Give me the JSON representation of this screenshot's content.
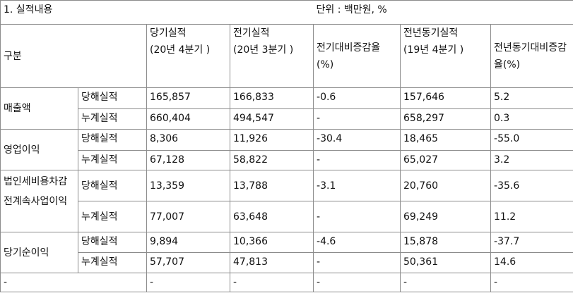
{
  "title": "1. 실적내용",
  "unit": "단위 : 백만원, %",
  "headers": {
    "category": "구분",
    "current": "당기실적",
    "current_period": "(20년 4분기 )",
    "previous": "전기실적",
    "previous_period": "(20년 3분기 )",
    "qoq": "전기대비증감율(%)",
    "last_year": "전년동기실적",
    "last_year_period": "(19년 4분기 )",
    "yoy": "전년동기대비증감율(%)"
  },
  "groups": [
    {
      "name": "매출액",
      "rows": [
        {
          "type": "당해실적",
          "current": "165,857",
          "previous": "166,833",
          "qoq": "-0.6",
          "last_year": "157,646",
          "yoy": "5.2"
        },
        {
          "type": "누계실적",
          "current": "660,404",
          "previous": "494,547",
          "qoq": "-",
          "last_year": "658,297",
          "yoy": "0.3"
        }
      ]
    },
    {
      "name": "영업이익",
      "rows": [
        {
          "type": "당해실적",
          "current": "8,306",
          "previous": "11,926",
          "qoq": "-30.4",
          "last_year": "18,465",
          "yoy": "-55.0"
        },
        {
          "type": "누계실적",
          "current": "67,128",
          "previous": "58,822",
          "qoq": "-",
          "last_year": "65,027",
          "yoy": "3.2"
        }
      ]
    },
    {
      "name": "법인세비용차감전계속사업이익",
      "rows": [
        {
          "type": "당해실적",
          "current": "13,359",
          "previous": "13,788",
          "qoq": "-3.1",
          "last_year": "20,760",
          "yoy": "-35.6"
        },
        {
          "type": "누계실적",
          "current": "77,007",
          "previous": "63,648",
          "qoq": "-",
          "last_year": "69,249",
          "yoy": "11.2"
        }
      ]
    },
    {
      "name": "당기순이익",
      "rows": [
        {
          "type": "당해실적",
          "current": "9,894",
          "previous": "10,366",
          "qoq": "-4.6",
          "last_year": "15,878",
          "yoy": "-37.7"
        },
        {
          "type": "누계실적",
          "current": "57,707",
          "previous": "47,813",
          "qoq": "-",
          "last_year": "50,361",
          "yoy": "14.6"
        }
      ]
    }
  ],
  "last_row": {
    "category": "-",
    "current": "-",
    "previous": "-",
    "qoq": "-",
    "last_year": "-",
    "yoy": "-"
  }
}
